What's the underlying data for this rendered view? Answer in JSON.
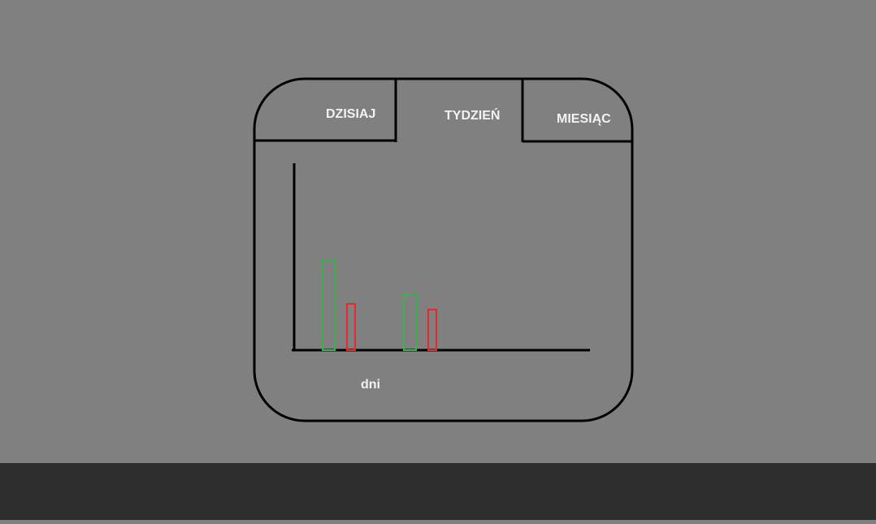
{
  "tabs": [
    {
      "label": "DZISIAJ"
    },
    {
      "label": "TYDZIEŃ"
    },
    {
      "label": "MIESIĄC"
    }
  ],
  "colors": {
    "background": "#808080",
    "outline": "#000000",
    "bottom_bar": "#2e2e2e",
    "label_text": "#f2f2f2",
    "series_green": "#3db04b",
    "series_red": "#e8282b"
  },
  "chart_data": {
    "type": "bar",
    "xlabel": "dni",
    "ylabel": "",
    "title": "",
    "categories": [
      "",
      ""
    ],
    "series": [
      {
        "color": "#3db04b",
        "values": [
          110,
          68
        ]
      },
      {
        "color": "#e8282b",
        "values": [
          57,
          50
        ]
      }
    ],
    "ylim": [
      0,
      230
    ],
    "grid": false
  }
}
